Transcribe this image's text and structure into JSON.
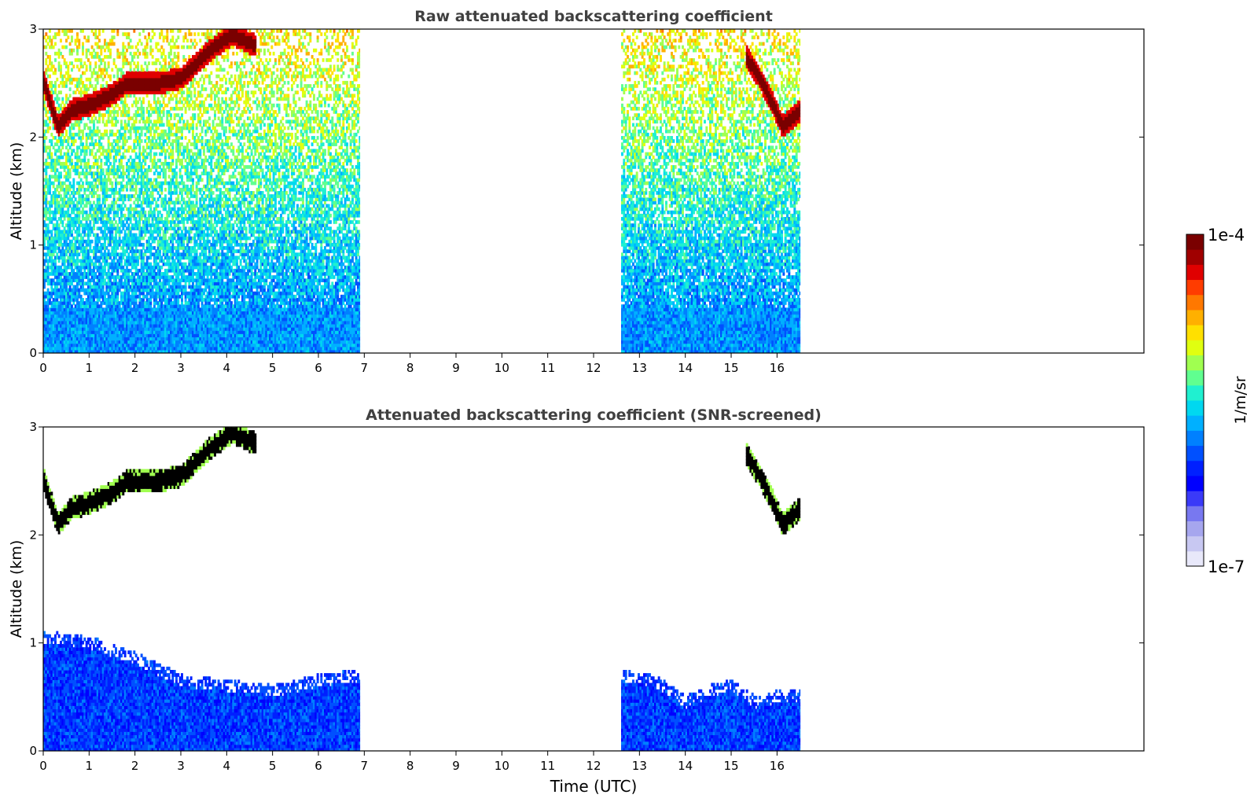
{
  "colors": {
    "colormap": [
      "#e8e8fa",
      "#c8c8f2",
      "#a6a6ee",
      "#7878f0",
      "#3a3af8",
      "#0000ff",
      "#0020ff",
      "#0050ff",
      "#0080ff",
      "#00b0ff",
      "#00d8f0",
      "#20f0d0",
      "#60ff90",
      "#a0ff50",
      "#e0ff10",
      "#ffe000",
      "#ffb000",
      "#ff7800",
      "#ff3c00",
      "#e00000",
      "#a00000",
      "#7a0000"
    ],
    "axis": "#000000",
    "title_text": "#404040",
    "cloud_core": "#000000"
  },
  "chart_data": [
    {
      "type": "heatmap",
      "title": "Raw attenuated backscattering coefficient",
      "xlabel": "",
      "ylabel": "Altitude (km)",
      "xlim": [
        0,
        24
      ],
      "ylim": [
        0,
        3
      ],
      "xticks": [
        "0",
        "1",
        "2",
        "3",
        "4",
        "5",
        "6",
        "7",
        "8",
        "9",
        "10",
        "11",
        "12",
        "13",
        "14",
        "15",
        "16"
      ],
      "yticks": [
        "0",
        "1",
        "2",
        "3"
      ],
      "data_time_ranges_utc": [
        [
          0,
          6.9
        ],
        [
          12.6,
          16.5
        ]
      ],
      "features": [
        {
          "name": "cloud layer",
          "points": [
            [
              0,
              2.5
            ],
            [
              0.3,
              2.1
            ],
            [
              0.6,
              2.25
            ],
            [
              1,
              2.3
            ],
            [
              1.5,
              2.4
            ],
            [
              1.8,
              2.5
            ],
            [
              2.5,
              2.5
            ],
            [
              3,
              2.55
            ],
            [
              3.6,
              2.8
            ],
            [
              4.1,
              2.95
            ],
            [
              4.6,
              2.85
            ]
          ]
        },
        {
          "name": "cloud layer",
          "points": [
            [
              15.3,
              2.75
            ],
            [
              15.6,
              2.55
            ],
            [
              15.9,
              2.3
            ],
            [
              16.1,
              2.1
            ],
            [
              16.5,
              2.25
            ]
          ]
        }
      ],
      "value_range": [
        "1e-7",
        "1e-4"
      ],
      "scale": "log"
    },
    {
      "type": "heatmap",
      "title": "Attenuated backscattering coefficient (SNR-screened)",
      "xlabel": "Time (UTC)",
      "ylabel": "Altitude (km)",
      "xlim": [
        0,
        24
      ],
      "ylim": [
        0,
        3
      ],
      "xticks": [
        "0",
        "1",
        "2",
        "3",
        "4",
        "5",
        "6",
        "7",
        "8",
        "9",
        "10",
        "11",
        "12",
        "13",
        "14",
        "15",
        "16"
      ],
      "yticks": [
        "0",
        "1",
        "2",
        "3"
      ],
      "data_time_ranges_utc": [
        [
          0,
          6.9
        ],
        [
          12.6,
          16.5
        ]
      ],
      "features": [
        {
          "name": "cloud layer",
          "points": [
            [
              0,
              2.5
            ],
            [
              0.3,
              2.1
            ],
            [
              0.6,
              2.25
            ],
            [
              1,
              2.3
            ],
            [
              1.5,
              2.4
            ],
            [
              1.8,
              2.5
            ],
            [
              2.5,
              2.5
            ],
            [
              3,
              2.55
            ],
            [
              3.6,
              2.8
            ],
            [
              4.1,
              2.95
            ],
            [
              4.6,
              2.85
            ]
          ]
        },
        {
          "name": "cloud layer",
          "points": [
            [
              15.3,
              2.75
            ],
            [
              15.6,
              2.55
            ],
            [
              15.9,
              2.3
            ],
            [
              16.1,
              2.1
            ],
            [
              16.5,
              2.25
            ]
          ]
        },
        {
          "name": "aerosol layer top",
          "points": [
            [
              0,
              1.05
            ],
            [
              1,
              1.0
            ],
            [
              2,
              0.85
            ],
            [
              3,
              0.65
            ],
            [
              4,
              0.6
            ],
            [
              5,
              0.55
            ],
            [
              6,
              0.65
            ],
            [
              6.9,
              0.7
            ]
          ]
        },
        {
          "name": "aerosol layer top",
          "points": [
            [
              12.6,
              0.7
            ],
            [
              13.3,
              0.65
            ],
            [
              14,
              0.45
            ],
            [
              14.5,
              0.55
            ],
            [
              15,
              0.6
            ],
            [
              15.5,
              0.45
            ],
            [
              16,
              0.5
            ],
            [
              16.5,
              0.5
            ]
          ]
        }
      ],
      "value_range": [
        "1e-7",
        "1e-4"
      ],
      "scale": "log"
    }
  ],
  "colorbar": {
    "max_label": "1e-4",
    "min_label": "1e-7",
    "unit_label": "1/m/sr"
  }
}
